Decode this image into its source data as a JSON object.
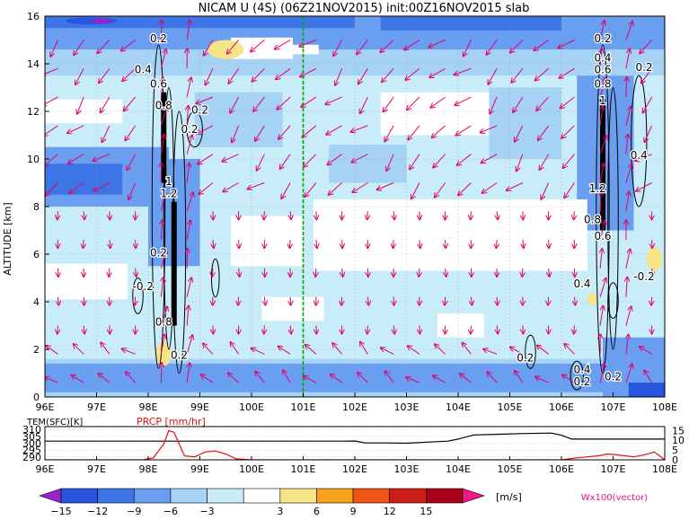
{
  "chart_data": [
    {
      "type": "heatmap",
      "title": "NICAM U (4S) (06Z21NOV2015) init:00Z16NOV2015 slab",
      "ylabel": "ALTITUDE [km]",
      "xlim": [
        96,
        108
      ],
      "ylim": [
        0,
        16
      ],
      "x_tick_labels": [
        "96E",
        "97E",
        "98E",
        "99E",
        "100E",
        "101E",
        "102E",
        "103E",
        "104E",
        "105E",
        "106E",
        "107E",
        "108E"
      ],
      "x_tick_values": [
        96,
        97,
        98,
        99,
        100,
        101,
        102,
        103,
        104,
        105,
        106,
        107,
        108
      ],
      "y_tick_labels": [
        "0",
        "2",
        "4",
        "6",
        "8",
        "10",
        "12",
        "14",
        "16"
      ],
      "y_tick_values": [
        0,
        2,
        4,
        6,
        8,
        10,
        12,
        14,
        16
      ],
      "grid": true,
      "marker_line_x": 101,
      "contour_labels": [
        {
          "text": "0.2",
          "x": 98.2,
          "y": 14.9
        },
        {
          "text": "0.4",
          "x": 97.9,
          "y": 13.6
        },
        {
          "text": "0.6",
          "x": 98.2,
          "y": 13.0
        },
        {
          "text": "0.8",
          "x": 98.3,
          "y": 12.1
        },
        {
          "text": "0.2",
          "x": 99.0,
          "y": 11.9
        },
        {
          "text": "0.2",
          "x": 98.8,
          "y": 11.1
        },
        {
          "text": "1",
          "x": 98.4,
          "y": 8.9
        },
        {
          "text": "1.2",
          "x": 98.4,
          "y": 8.4
        },
        {
          "text": "0.2",
          "x": 98.2,
          "y": 5.9
        },
        {
          "text": "-0.2",
          "x": 97.9,
          "y": 4.5
        },
        {
          "text": "0.8",
          "x": 98.3,
          "y": 3.0
        },
        {
          "text": "0.2",
          "x": 98.6,
          "y": 1.6
        },
        {
          "text": "0.2",
          "x": 106.8,
          "y": 14.9
        },
        {
          "text": "0.4",
          "x": 106.8,
          "y": 14.1
        },
        {
          "text": "0.6",
          "x": 106.8,
          "y": 13.6
        },
        {
          "text": "0.8",
          "x": 106.8,
          "y": 13.0
        },
        {
          "text": "0.2",
          "x": 107.6,
          "y": 13.7
        },
        {
          "text": "1",
          "x": 106.8,
          "y": 12.3
        },
        {
          "text": "1.2",
          "x": 106.7,
          "y": 8.6
        },
        {
          "text": "0.4",
          "x": 107.5,
          "y": 10.0
        },
        {
          "text": "0.8",
          "x": 106.6,
          "y": 7.3
        },
        {
          "text": "0.6",
          "x": 106.8,
          "y": 6.6
        },
        {
          "text": "0.2",
          "x": 105.3,
          "y": 1.5
        },
        {
          "text": "0.4",
          "x": 106.4,
          "y": 1.0
        },
        {
          "text": "0.2",
          "x": 106.4,
          "y": 0.5
        },
        {
          "text": "0.2",
          "x": 107.0,
          "y": 0.7
        },
        {
          "text": "-0.2",
          "x": 107.6,
          "y": 4.9
        },
        {
          "text": "0.4",
          "x": 106.4,
          "y": 4.6
        }
      ]
    },
    {
      "type": "line",
      "xlim": [
        96,
        108
      ],
      "x_tick_labels": [
        "96E",
        "97E",
        "98E",
        "99E",
        "100E",
        "101E",
        "102E",
        "103E",
        "104E",
        "105E",
        "106E",
        "107E",
        "108E"
      ],
      "x_tick_values": [
        96,
        97,
        98,
        99,
        100,
        101,
        102,
        103,
        104,
        105,
        106,
        107,
        108
      ],
      "left_axis_label": "TEM(SFC)[K]",
      "left_ticks": [
        "310",
        "305",
        "300",
        "295",
        "290"
      ],
      "left_tick_values": [
        310,
        305,
        300,
        295,
        290
      ],
      "right_axis_label": "PRCP [mm/hr]",
      "right_ticks": [
        "15",
        "10",
        "5",
        "0"
      ],
      "right_tick_values": [
        15,
        10,
        5,
        0
      ],
      "series": [
        {
          "name": "TEM(SFC)[K]",
          "color": "#000000",
          "x": [
            96.0,
            101.8,
            102.0,
            102.2,
            102.6,
            103.0,
            103.4,
            103.8,
            104.0,
            104.3,
            104.8,
            105.3,
            105.8,
            106.0,
            106.2,
            108.0
          ],
          "y": [
            301.5,
            301.5,
            301.6,
            300.2,
            300.2,
            300.0,
            300.8,
            301.5,
            303.0,
            306.0,
            306.5,
            307.0,
            307.3,
            305.8,
            303.0,
            303.0
          ]
        },
        {
          "name": "PRCP [mm/hr]",
          "color": "#dd1111",
          "x": [
            96.0,
            97.9,
            98.1,
            98.3,
            98.4,
            98.5,
            98.6,
            98.7,
            98.9,
            99.1,
            99.3,
            99.5,
            99.7,
            100.0,
            106.0,
            106.3,
            106.5,
            106.7,
            106.9,
            107.1,
            107.4,
            107.6,
            107.8,
            108.0
          ],
          "y": [
            0.0,
            0.0,
            1.0,
            8.0,
            15.0,
            14.0,
            8.0,
            2.0,
            1.5,
            4.0,
            4.5,
            3.0,
            0.5,
            0.0,
            0.0,
            1.0,
            1.5,
            2.0,
            3.0,
            2.5,
            1.5,
            2.5,
            4.0,
            0.0
          ]
        }
      ]
    },
    {
      "type": "colorbar",
      "labels": [
        "−15",
        "−12",
        "−9",
        "−6",
        "−3",
        "3",
        "6",
        "9",
        "12",
        "15"
      ],
      "unit": "[m/s]",
      "colors": [
        "#9a22cc",
        "#2855dd",
        "#3d75e6",
        "#6a9ef0",
        "#a5d2f5",
        "#c8ecf8",
        "#ffffff",
        "#f6e486",
        "#f7a21c",
        "#ee5416",
        "#cc1d16",
        "#a9001a",
        "#ee1a8a"
      ]
    }
  ],
  "vector_note": "Wx100(vector)",
  "colors": {
    "vector": "#e0006f",
    "marker_line": "#00aa00"
  }
}
